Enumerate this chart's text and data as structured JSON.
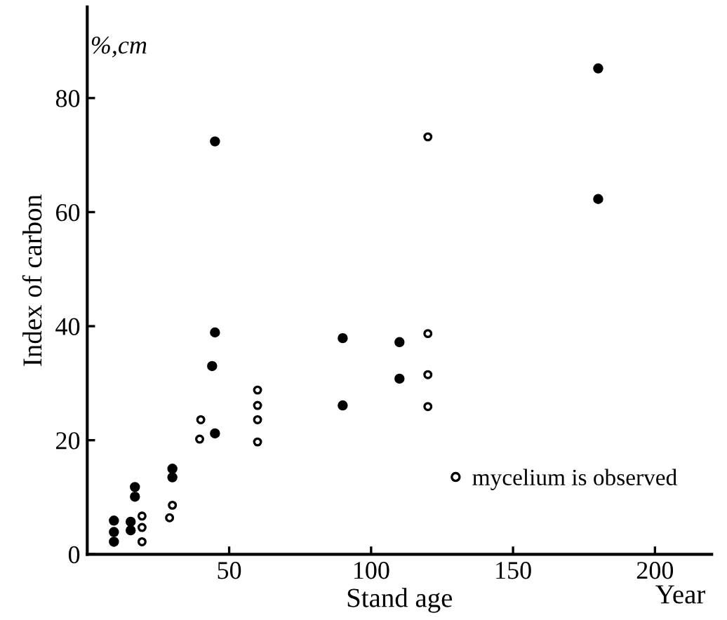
{
  "chart_data": {
    "type": "scatter",
    "xlabel": "Stand age",
    "ylabel": "Index of carbon",
    "annotations": [
      "%,cm",
      "Year"
    ],
    "series": [
      {
        "color": "#000000",
        "marker": "circle",
        "x": [
          9.4,
          9.4,
          9.4,
          15.3,
          15.3,
          16.8,
          16.8,
          30,
          30,
          45,
          45,
          44,
          45,
          90,
          90,
          110,
          110,
          180,
          180
        ],
        "values": [
          5.9,
          3.9,
          2.2,
          5.7,
          4.2,
          11.8,
          10.1,
          15.0,
          13.5,
          72.4,
          38.9,
          33,
          21.2,
          37.9,
          26.1,
          37.2,
          30.8,
          85.2,
          62.3
        ]
      },
      {
        "name": "mycelium is observed",
        "color": "#000000",
        "marker": "circle",
        "x": [
          19.3,
          19.3,
          19.3,
          29,
          30,
          39.6,
          40,
          60,
          60,
          60,
          60,
          120,
          120,
          120,
          120
        ],
        "values": [
          6.7,
          4.7,
          2.2,
          6.4,
          8.6,
          20.2,
          23.6,
          28.8,
          26.1,
          23.6,
          19.7,
          73.2,
          38.7,
          31.5,
          25.9
        ]
      }
    ],
    "xlim": [
      0,
      220
    ],
    "ylim": [
      0,
      96
    ],
    "xticks": [
      50,
      100,
      150,
      200
    ],
    "yticks": [
      0,
      20,
      40,
      60,
      80
    ],
    "grid": false,
    "legend": "bottom right"
  }
}
